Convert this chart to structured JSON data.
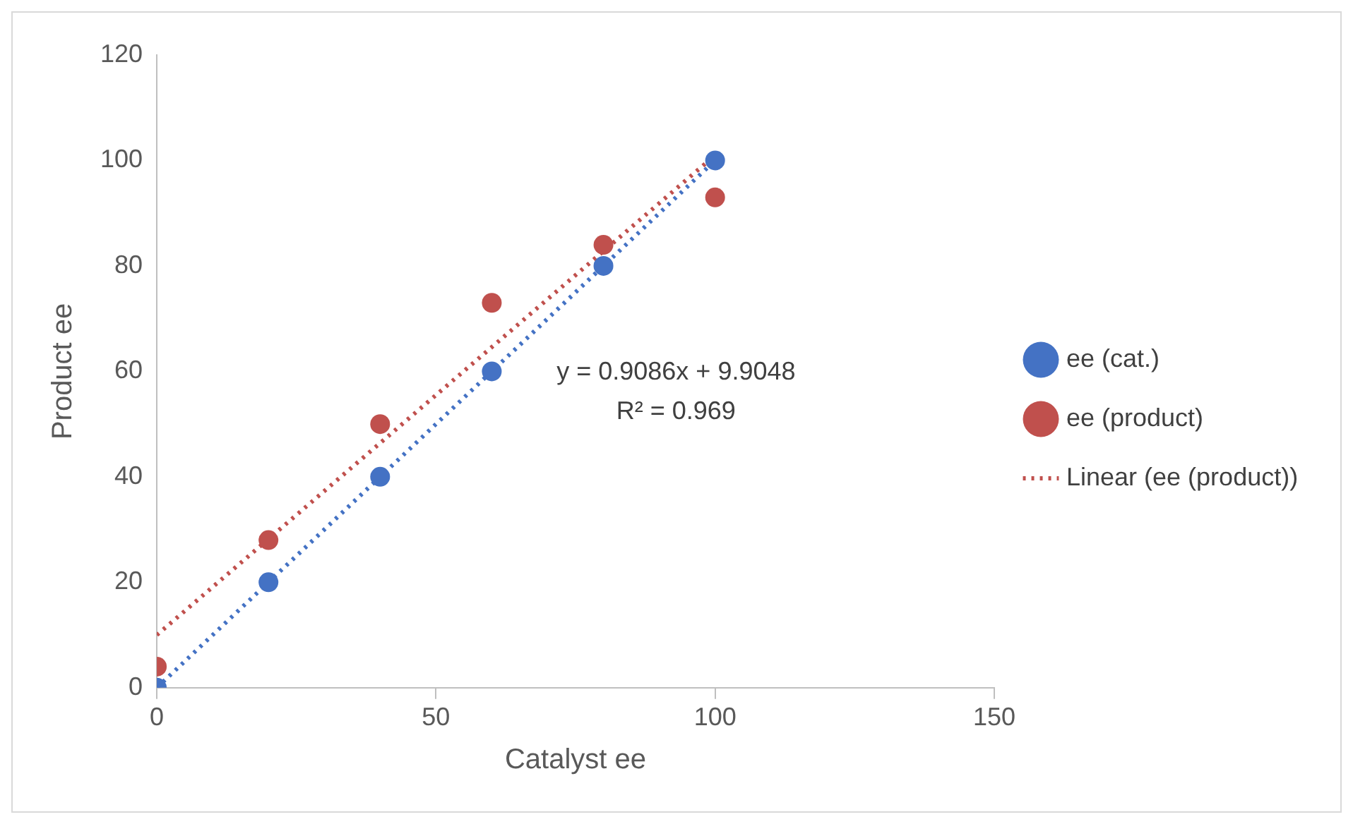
{
  "chart_data": {
    "type": "scatter",
    "xlabel": "Catalyst ee",
    "ylabel": "Product ee",
    "xlim": [
      0,
      150
    ],
    "xticks": [
      0,
      50,
      100,
      150
    ],
    "ylim": [
      0,
      120
    ],
    "yticks": [
      0,
      20,
      40,
      60,
      80,
      100,
      120
    ],
    "grid": false,
    "legend": "right",
    "annotations": [
      "y = 0.9086x + 9.9048",
      "R² = 0.969"
    ],
    "series": [
      {
        "name": "ee (cat.)",
        "marker": "circle",
        "color": "#4472c4",
        "x": [
          0,
          20,
          40,
          60,
          80,
          100
        ],
        "values": [
          0,
          20,
          40,
          60,
          80,
          100
        ]
      },
      {
        "name": "ee (product)",
        "marker": "circle",
        "color": "#c0504d",
        "x": [
          0,
          20,
          40,
          60,
          80,
          100
        ],
        "values": [
          4,
          28,
          50,
          73,
          84,
          93
        ]
      },
      {
        "type": "line",
        "marker": "none",
        "line_style": "dotted",
        "color": "#4472c4",
        "x": [
          0,
          100
        ],
        "values": [
          0,
          100
        ]
      },
      {
        "type": "line",
        "marker": "none",
        "line_style": "dotted",
        "name": "Linear (ee (product))",
        "color": "#c0504d",
        "x": [
          0,
          100
        ],
        "values": [
          10,
          101
        ]
      }
    ]
  }
}
